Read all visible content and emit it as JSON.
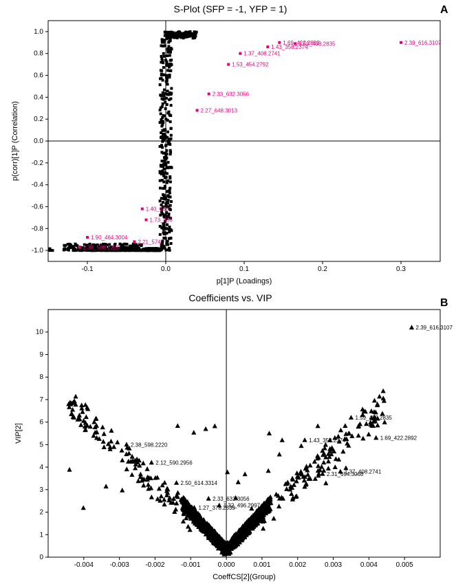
{
  "panelA": {
    "label": "A",
    "title": "S-Plot (SFP = -1, YFP = 1)",
    "xlabel": "p[1]P (Loadings)",
    "ylabel": "p(corr)[1]P (Correlation)",
    "type": "scatter",
    "xlim": [
      -0.15,
      0.35
    ],
    "ylim": [
      -1.1,
      1.1
    ],
    "xtick_step": 0.1,
    "ytick_step": 0.2,
    "xticks": [
      -0.1,
      0.0,
      0.1,
      0.2,
      0.3
    ],
    "yticks": [
      -1.0,
      -0.8,
      -0.6,
      -0.4,
      -0.2,
      0.0,
      0.2,
      0.4,
      0.6,
      0.8,
      1.0
    ],
    "marker": "square",
    "marker_size": 4,
    "marker_color": "#000000",
    "highlight_color": "#e6007e",
    "background_color": "#ffffff",
    "axis_color": "#000000",
    "zero_line_color": "#000000",
    "labeled_points": [
      {
        "x": 0.3,
        "y": 0.9,
        "label": "2.39_616.3107"
      },
      {
        "x": 0.145,
        "y": 0.9,
        "label": "1.69_422.2892"
      },
      {
        "x": 0.165,
        "y": 0.89,
        "label": "1.59_438.2835"
      },
      {
        "x": 0.13,
        "y": 0.86,
        "label": "1.43_358.2374"
      },
      {
        "x": 0.095,
        "y": 0.8,
        "label": "1.37_408.2741"
      },
      {
        "x": 0.08,
        "y": 0.7,
        "label": "1.53_454.2792"
      },
      {
        "x": 0.055,
        "y": 0.43,
        "label": "2.33_632.3056"
      },
      {
        "x": 0.04,
        "y": 0.28,
        "label": "2.27_648.3013"
      },
      {
        "x": -0.03,
        "y": -0.62,
        "label": "1.40_456"
      },
      {
        "x": -0.025,
        "y": -0.72,
        "label": "1.73_486"
      },
      {
        "x": -0.04,
        "y": -0.92,
        "label": "2.21_574"
      },
      {
        "x": -0.1,
        "y": -0.88,
        "label": "1.90_464.3004"
      },
      {
        "x": -0.11,
        "y": -0.97,
        "label": "2.38_598.2220"
      }
    ]
  },
  "panelB": {
    "label": "B",
    "title": "Coefficients vs. VIP",
    "xlabel": "CoeffCS[2](Group)",
    "ylabel": "VIP[2]",
    "type": "scatter",
    "xlim": [
      -0.005,
      0.006
    ],
    "ylim": [
      0,
      11
    ],
    "xticks": [
      -0.004,
      -0.003,
      -0.002,
      -0.001,
      0.0,
      0.001,
      0.002,
      0.003,
      0.004,
      0.005
    ],
    "yticks": [
      0,
      1,
      2,
      3,
      4,
      5,
      6,
      7,
      8,
      9,
      10
    ],
    "marker": "triangle",
    "marker_size": 5,
    "marker_color": "#000000",
    "background_color": "#ffffff",
    "axis_color": "#000000",
    "zero_line_color": "#000000",
    "labeled_points": [
      {
        "x": 0.0052,
        "y": 10.2,
        "label": "2.39_616.3107"
      },
      {
        "x": 0.0035,
        "y": 6.2,
        "label": "1.59_438.2835"
      },
      {
        "x": 0.0042,
        "y": 5.3,
        "label": "1.69_422.2892"
      },
      {
        "x": 0.0022,
        "y": 5.2,
        "label": "1.43_358.2374"
      },
      {
        "x": 0.0032,
        "y": 3.8,
        "label": "1.37_408.2741"
      },
      {
        "x": 0.0027,
        "y": 3.7,
        "label": "2.31_694.3068"
      },
      {
        "x": -0.0028,
        "y": 5.0,
        "label": "2.38_598.2220"
      },
      {
        "x": -0.0021,
        "y": 4.2,
        "label": "2.12_590.2956"
      },
      {
        "x": -0.0014,
        "y": 3.3,
        "label": "2.50_614.3314"
      },
      {
        "x": -0.0005,
        "y": 2.6,
        "label": "2.33_632.3056"
      },
      {
        "x": -0.0002,
        "y": 2.3,
        "label": "1.32_496.2997"
      },
      {
        "x": -0.0009,
        "y": 2.2,
        "label": "1.27_378.2539"
      }
    ]
  }
}
